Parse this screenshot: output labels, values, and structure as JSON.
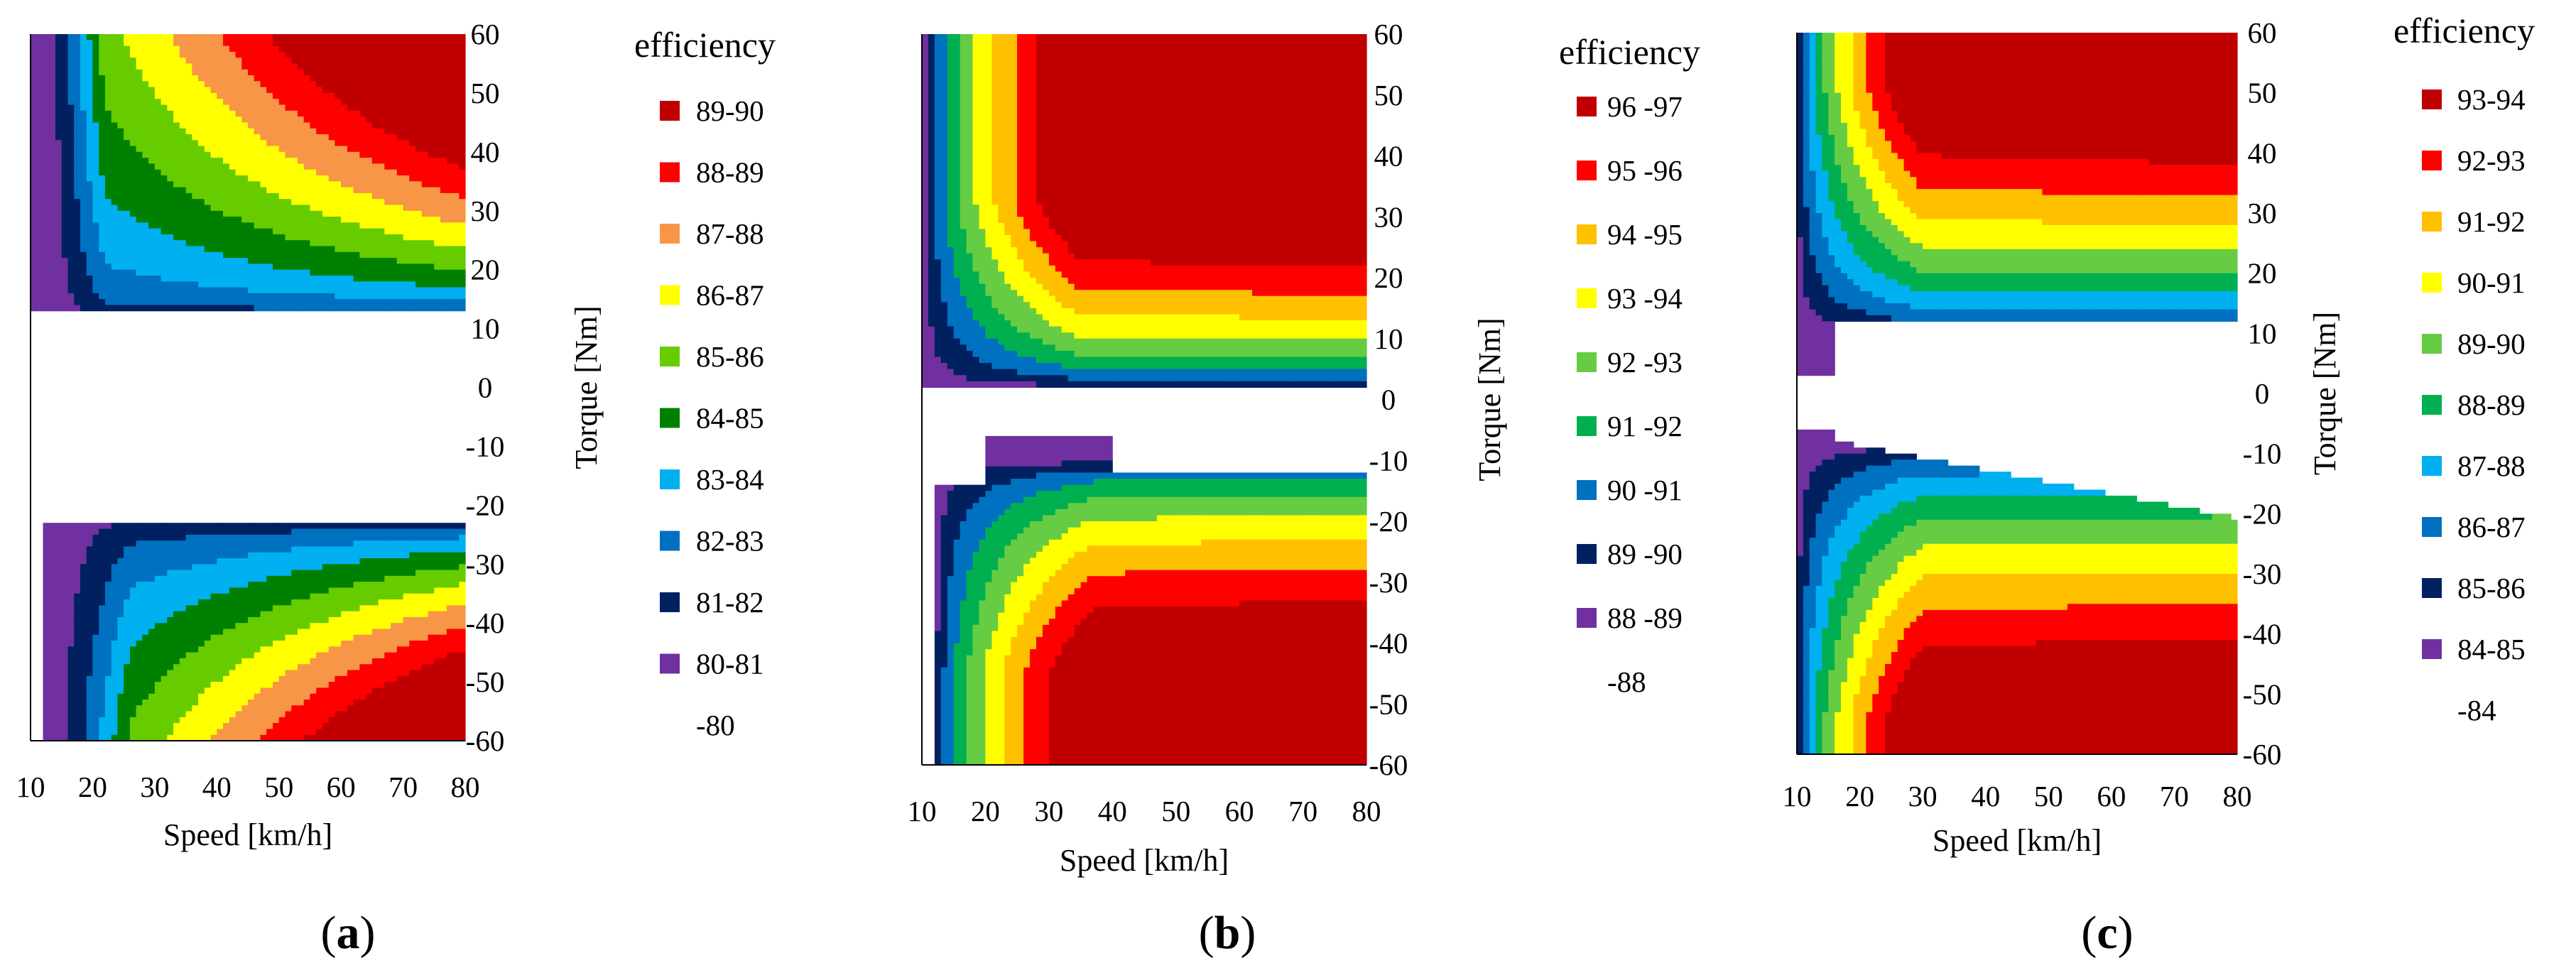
{
  "figure": {
    "panels": [
      {
        "label_letter": "a",
        "legend_title": "efficiency",
        "legend_bins": [
          "89-90",
          "88-89",
          "87-88",
          "86-87",
          "85-86",
          "84-85",
          "83-84",
          "82-83",
          "81-82",
          "80-81"
        ],
        "legend_floor": "-80",
        "contour_levels": [
          90,
          89,
          88,
          87,
          86,
          85,
          84,
          83,
          82,
          81,
          80
        ],
        "colors": [
          "#c00000",
          "#ff0000",
          "#f79646",
          "#ffff00",
          "#66cc00",
          "#008000",
          "#00b0f0",
          "#0070c0",
          "#002060",
          "#7030a0"
        ]
      },
      {
        "label_letter": "b",
        "legend_title": "efficiency",
        "legend_bins": [
          "96 -97",
          "95 -96",
          "94 -95",
          "93 -94",
          "92 -93",
          "91 -92",
          "90 -91",
          "89 -90",
          "88 -89"
        ],
        "legend_floor": "-88",
        "contour_levels": [
          97,
          96,
          95,
          94,
          93,
          92,
          91,
          90,
          89,
          88
        ],
        "colors": [
          "#c00000",
          "#ff0000",
          "#ffc000",
          "#ffff00",
          "#66cc44",
          "#00b050",
          "#0070c0",
          "#002060",
          "#7030a0"
        ]
      },
      {
        "label_letter": "c",
        "legend_title": "efficiency",
        "legend_bins": [
          "93-94",
          "92-93",
          "91-92",
          "90-91",
          "89-90",
          "88-89",
          "87-88",
          "86-87",
          "85-86",
          "84-85"
        ],
        "legend_floor": "-84",
        "contour_levels": [
          94,
          93,
          92,
          91,
          90,
          89,
          88,
          87,
          86,
          85,
          84
        ],
        "colors": [
          "#c00000",
          "#ff0000",
          "#ffc000",
          "#ffff00",
          "#66cc44",
          "#00b050",
          "#00b0f0",
          "#0070c0",
          "#002060",
          "#7030a0"
        ]
      }
    ]
  },
  "chart_data": [
    {
      "type": "contour",
      "title": "(a)",
      "xlabel": "Speed [km/h]",
      "ylabel": "Torque [Nm]",
      "x_ticks": [
        "10",
        "20",
        "30",
        "40",
        "50",
        "60",
        "70",
        "80"
      ],
      "y_ticks": [
        "60",
        "50",
        "40",
        "30",
        "20",
        "10",
        "0",
        "-10",
        "-20",
        "-30",
        "-40",
        "-50",
        "-60"
      ],
      "xlim": [
        10,
        80
      ],
      "ylim": [
        -60,
        60
      ],
      "legend_title": "efficiency",
      "legend": [
        "89-90",
        "88-89",
        "87-88",
        "86-87",
        "85-86",
        "84-85",
        "83-84",
        "82-83",
        "81-82",
        "80-81",
        "-80"
      ],
      "drive_region_torque_range": [
        13,
        60
      ],
      "regen_region_torque_range": [
        -60,
        -23
      ],
      "peak_efficiency_bin": "89-90",
      "peak_location": {
        "speed": [
          65,
          80
        ],
        "torque": [
          50,
          60
        ]
      }
    },
    {
      "type": "contour",
      "title": "(b)",
      "xlabel": "Speed [km/h]",
      "ylabel": "Torque [Nm]",
      "x_ticks": [
        "10",
        "20",
        "30",
        "40",
        "50",
        "60",
        "70",
        "80"
      ],
      "y_ticks": [
        "60",
        "50",
        "40",
        "30",
        "20",
        "10",
        "0",
        "-10",
        "-20",
        "-30",
        "-40",
        "-50",
        "-60"
      ],
      "xlim": [
        10,
        80
      ],
      "ylim": [
        -60,
        60
      ],
      "legend_title": "efficiency",
      "legend": [
        "96 -97",
        "95 -96",
        "94 -95",
        "93 -94",
        "92 -93",
        "91 -92",
        "90 -91",
        "89 -90",
        "88 -89",
        "-88"
      ],
      "drive_region_torque_range": [
        2,
        60
      ],
      "regen_region_torque_range": [
        -60,
        -6
      ],
      "peak_efficiency_bin": "96 -97",
      "peak_location": {
        "speed": [
          40,
          80
        ],
        "torque": [
          36,
          60
        ]
      }
    },
    {
      "type": "contour",
      "title": "(c)",
      "xlabel": "Speed [km/h]",
      "ylabel": "Torque [Nm]",
      "x_ticks": [
        "10",
        "20",
        "30",
        "40",
        "50",
        "60",
        "70",
        "80"
      ],
      "y_ticks": [
        "60",
        "50",
        "40",
        "30",
        "20",
        "10",
        "0",
        "-10",
        "-20",
        "-30",
        "-40",
        "-50",
        "-60"
      ],
      "xlim": [
        10,
        80
      ],
      "ylim": [
        -60,
        60
      ],
      "legend_title": "efficiency",
      "legend": [
        "93-94",
        "92-93",
        "91-92",
        "90-91",
        "89-90",
        "88-89",
        "87-88",
        "86-87",
        "85-86",
        "84-85",
        "-84"
      ],
      "drive_region_torque_range": [
        3,
        60
      ],
      "regen_region_torque_range": [
        -60,
        -6
      ],
      "peak_efficiency_bin": "93-94",
      "peak_location": {
        "speed": [
          48,
          80
        ],
        "torque": [
          50,
          60
        ]
      }
    }
  ]
}
